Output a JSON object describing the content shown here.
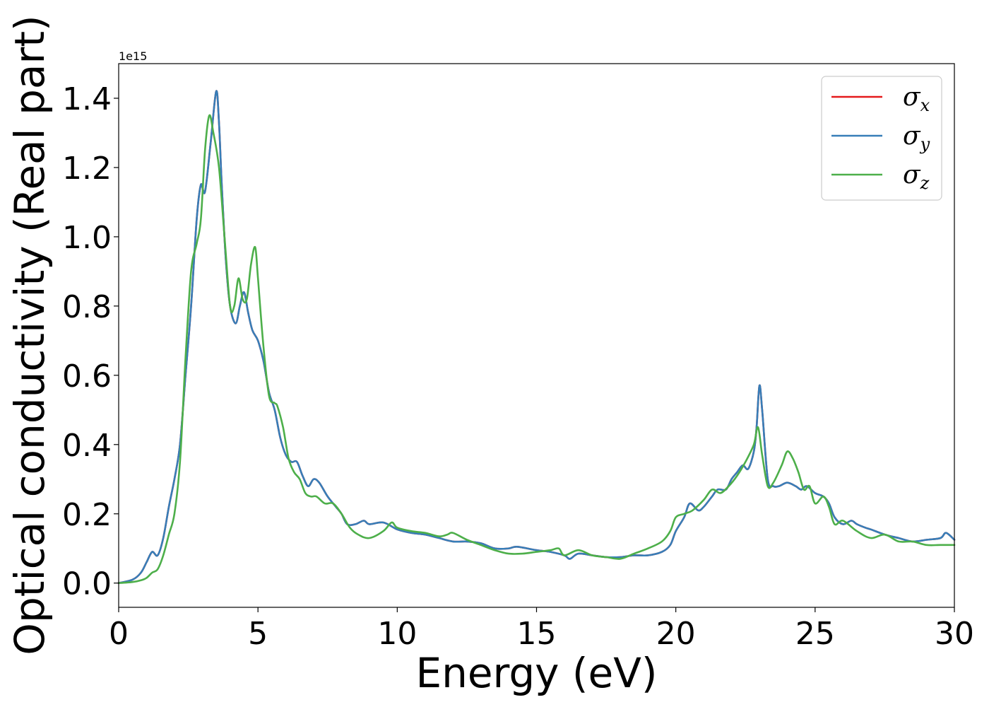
{
  "chart_data": {
    "type": "line",
    "xlabel": "Energy (eV)",
    "ylabel": "Optical conductivity (Real part)",
    "y_offset_text": "1e15",
    "xlim": [
      0,
      30
    ],
    "ylim": [
      -0.07,
      1.5
    ],
    "xticks": [
      0,
      5,
      10,
      15,
      20,
      25,
      30
    ],
    "xtick_labels": [
      "0",
      "5",
      "10",
      "15",
      "20",
      "25",
      "30"
    ],
    "yticks": [
      0.0,
      0.2,
      0.4,
      0.6,
      0.8,
      1.0,
      1.2,
      1.4
    ],
    "ytick_labels": [
      "0.0",
      "0.2",
      "0.4",
      "0.6",
      "0.8",
      "1.0",
      "1.2",
      "1.4"
    ],
    "grid": false,
    "legend_position": "top-right",
    "series": [
      {
        "name": "σx",
        "symbol": "σ",
        "subscript": "x",
        "color": "#e41a1c",
        "x": [
          0,
          0.5,
          0.8,
          1.0,
          1.2,
          1.4,
          1.6,
          1.8,
          2.0,
          2.2,
          2.4,
          2.6,
          2.8,
          2.95,
          3.1,
          3.3,
          3.5,
          3.6,
          3.7,
          3.85,
          4.0,
          4.2,
          4.35,
          4.5,
          4.65,
          4.8,
          5.0,
          5.2,
          5.4,
          5.6,
          5.8,
          6.0,
          6.2,
          6.4,
          6.6,
          6.8,
          7.0,
          7.2,
          7.5,
          7.8,
          8.0,
          8.2,
          8.5,
          8.8,
          9.0,
          9.5,
          10.0,
          10.5,
          11.0,
          11.5,
          12.0,
          12.5,
          13.0,
          13.5,
          14.0,
          14.3,
          15.0,
          15.5,
          16.0,
          16.2,
          16.5,
          17.0,
          17.5,
          18.0,
          18.5,
          19.0,
          19.5,
          19.8,
          20.0,
          20.3,
          20.5,
          20.8,
          21.0,
          21.3,
          21.5,
          21.8,
          22.0,
          22.2,
          22.4,
          22.6,
          22.8,
          22.9,
          23.0,
          23.1,
          23.3,
          23.5,
          23.7,
          24.0,
          24.3,
          24.5,
          24.7,
          25.0,
          25.3,
          25.5,
          25.7,
          26.0,
          26.3,
          26.5,
          26.8,
          27.0,
          27.5,
          28.0,
          28.5,
          29.0,
          29.5,
          29.7,
          30.0
        ],
        "values": [
          0,
          0.01,
          0.03,
          0.06,
          0.09,
          0.08,
          0.13,
          0.22,
          0.3,
          0.4,
          0.6,
          0.8,
          1.05,
          1.15,
          1.13,
          1.27,
          1.42,
          1.33,
          1.15,
          0.93,
          0.8,
          0.75,
          0.8,
          0.84,
          0.78,
          0.73,
          0.7,
          0.64,
          0.55,
          0.5,
          0.42,
          0.37,
          0.35,
          0.35,
          0.31,
          0.28,
          0.3,
          0.29,
          0.25,
          0.22,
          0.2,
          0.17,
          0.17,
          0.18,
          0.17,
          0.175,
          0.155,
          0.145,
          0.14,
          0.13,
          0.12,
          0.12,
          0.115,
          0.1,
          0.1,
          0.105,
          0.095,
          0.09,
          0.08,
          0.07,
          0.085,
          0.08,
          0.075,
          0.075,
          0.08,
          0.08,
          0.09,
          0.11,
          0.15,
          0.19,
          0.23,
          0.21,
          0.22,
          0.25,
          0.27,
          0.27,
          0.3,
          0.32,
          0.34,
          0.33,
          0.38,
          0.45,
          0.57,
          0.5,
          0.3,
          0.28,
          0.28,
          0.29,
          0.28,
          0.27,
          0.28,
          0.26,
          0.25,
          0.23,
          0.19,
          0.17,
          0.18,
          0.17,
          0.16,
          0.155,
          0.14,
          0.13,
          0.12,
          0.125,
          0.13,
          0.145,
          0.125
        ]
      },
      {
        "name": "σy",
        "symbol": "σ",
        "subscript": "y",
        "color": "#377eb8",
        "x": [
          0,
          0.5,
          0.8,
          1.0,
          1.2,
          1.4,
          1.6,
          1.8,
          2.0,
          2.2,
          2.4,
          2.6,
          2.8,
          2.95,
          3.1,
          3.3,
          3.5,
          3.6,
          3.7,
          3.85,
          4.0,
          4.2,
          4.35,
          4.5,
          4.65,
          4.8,
          5.0,
          5.2,
          5.4,
          5.6,
          5.8,
          6.0,
          6.2,
          6.4,
          6.6,
          6.8,
          7.0,
          7.2,
          7.5,
          7.8,
          8.0,
          8.2,
          8.5,
          8.8,
          9.0,
          9.5,
          10.0,
          10.5,
          11.0,
          11.5,
          12.0,
          12.5,
          13.0,
          13.5,
          14.0,
          14.3,
          15.0,
          15.5,
          16.0,
          16.2,
          16.5,
          17.0,
          17.5,
          18.0,
          18.5,
          19.0,
          19.5,
          19.8,
          20.0,
          20.3,
          20.5,
          20.8,
          21.0,
          21.3,
          21.5,
          21.8,
          22.0,
          22.2,
          22.4,
          22.6,
          22.8,
          22.9,
          23.0,
          23.1,
          23.3,
          23.5,
          23.7,
          24.0,
          24.3,
          24.5,
          24.7,
          25.0,
          25.3,
          25.5,
          25.7,
          26.0,
          26.3,
          26.5,
          26.8,
          27.0,
          27.5,
          28.0,
          28.5,
          29.0,
          29.5,
          29.7,
          30.0
        ],
        "values": [
          0,
          0.01,
          0.03,
          0.06,
          0.09,
          0.08,
          0.13,
          0.22,
          0.3,
          0.4,
          0.6,
          0.8,
          1.05,
          1.15,
          1.13,
          1.27,
          1.42,
          1.33,
          1.15,
          0.93,
          0.8,
          0.75,
          0.8,
          0.84,
          0.78,
          0.73,
          0.7,
          0.64,
          0.55,
          0.5,
          0.42,
          0.37,
          0.35,
          0.35,
          0.31,
          0.28,
          0.3,
          0.29,
          0.25,
          0.22,
          0.2,
          0.17,
          0.17,
          0.18,
          0.17,
          0.175,
          0.155,
          0.145,
          0.14,
          0.13,
          0.12,
          0.12,
          0.115,
          0.1,
          0.1,
          0.105,
          0.095,
          0.09,
          0.08,
          0.07,
          0.085,
          0.08,
          0.075,
          0.075,
          0.08,
          0.08,
          0.09,
          0.11,
          0.15,
          0.19,
          0.23,
          0.21,
          0.22,
          0.25,
          0.27,
          0.27,
          0.3,
          0.32,
          0.34,
          0.33,
          0.38,
          0.45,
          0.57,
          0.5,
          0.3,
          0.28,
          0.28,
          0.29,
          0.28,
          0.27,
          0.28,
          0.26,
          0.25,
          0.23,
          0.19,
          0.17,
          0.18,
          0.17,
          0.16,
          0.155,
          0.14,
          0.13,
          0.12,
          0.125,
          0.13,
          0.145,
          0.125
        ]
      },
      {
        "name": "σz",
        "symbol": "σ",
        "subscript": "z",
        "color": "#4daf4a",
        "x": [
          0,
          0.5,
          0.8,
          1.0,
          1.2,
          1.4,
          1.6,
          1.8,
          2.0,
          2.2,
          2.4,
          2.6,
          2.8,
          2.95,
          3.1,
          3.25,
          3.4,
          3.6,
          3.8,
          4.0,
          4.15,
          4.3,
          4.45,
          4.6,
          4.75,
          4.9,
          5.0,
          5.2,
          5.4,
          5.6,
          5.7,
          5.9,
          6.1,
          6.3,
          6.5,
          6.7,
          6.9,
          7.1,
          7.4,
          7.7,
          8.0,
          8.3,
          8.6,
          9.0,
          9.5,
          9.8,
          10.0,
          10.5,
          11.0,
          11.5,
          11.8,
          12.0,
          12.5,
          13.0,
          13.5,
          14.0,
          14.5,
          15.0,
          15.5,
          15.8,
          16.0,
          16.5,
          17.0,
          17.5,
          18.0,
          18.5,
          19.0,
          19.5,
          19.8,
          20.0,
          20.3,
          20.6,
          21.0,
          21.3,
          21.6,
          21.9,
          22.2,
          22.5,
          22.8,
          22.95,
          23.1,
          23.3,
          23.5,
          23.8,
          24.0,
          24.2,
          24.4,
          24.6,
          24.8,
          25.0,
          25.3,
          25.5,
          25.7,
          26.0,
          26.5,
          27.0,
          27.5,
          28.0,
          28.5,
          29.0,
          29.5,
          30.0
        ],
        "values": [
          0,
          0.003,
          0.008,
          0.015,
          0.03,
          0.04,
          0.08,
          0.14,
          0.2,
          0.35,
          0.65,
          0.9,
          0.98,
          1.05,
          1.25,
          1.35,
          1.3,
          1.2,
          1.0,
          0.8,
          0.8,
          0.88,
          0.82,
          0.82,
          0.92,
          0.97,
          0.88,
          0.68,
          0.54,
          0.52,
          0.51,
          0.45,
          0.36,
          0.32,
          0.3,
          0.26,
          0.25,
          0.25,
          0.23,
          0.23,
          0.2,
          0.16,
          0.14,
          0.13,
          0.15,
          0.175,
          0.16,
          0.15,
          0.145,
          0.135,
          0.14,
          0.145,
          0.125,
          0.11,
          0.095,
          0.085,
          0.085,
          0.09,
          0.095,
          0.1,
          0.08,
          0.095,
          0.08,
          0.075,
          0.07,
          0.085,
          0.1,
          0.12,
          0.15,
          0.19,
          0.2,
          0.21,
          0.24,
          0.27,
          0.26,
          0.28,
          0.31,
          0.35,
          0.4,
          0.45,
          0.37,
          0.28,
          0.29,
          0.34,
          0.38,
          0.36,
          0.32,
          0.27,
          0.28,
          0.23,
          0.25,
          0.22,
          0.17,
          0.18,
          0.15,
          0.13,
          0.14,
          0.12,
          0.12,
          0.11,
          0.11,
          0.11
        ]
      }
    ]
  }
}
